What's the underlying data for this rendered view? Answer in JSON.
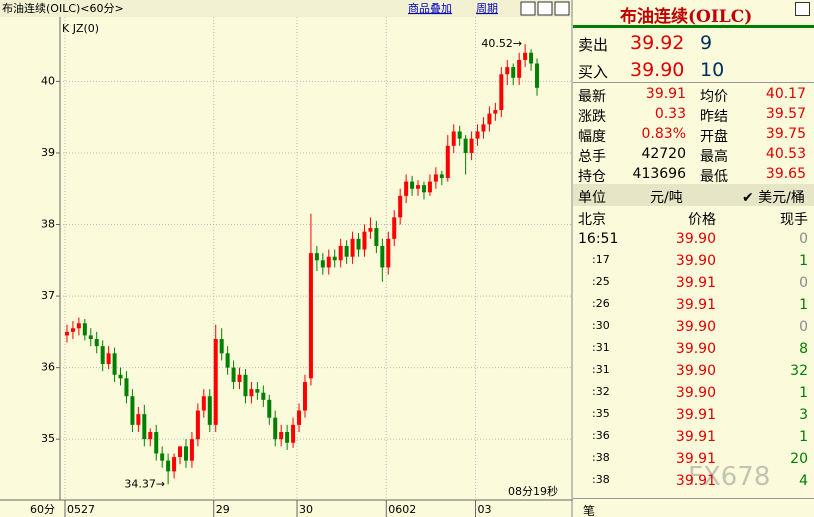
{
  "top_bar": {
    "title": "布油连续(OILC)<60分>",
    "overlay": "商品叠加",
    "period": "周期"
  },
  "chart_data": {
    "type": "candlestick",
    "indicator": "K JZ(0)",
    "interval": "60分",
    "countdown": "08分19秒",
    "categories": [
      "0527",
      null,
      null,
      null,
      null,
      null,
      null,
      null,
      null,
      null,
      null,
      null,
      null,
      null,
      null,
      null,
      null,
      null,
      null,
      null,
      null,
      null,
      null,
      null,
      null,
      "29",
      null,
      null,
      null,
      null,
      null,
      null,
      null,
      null,
      null,
      null,
      null,
      null,
      null,
      "30",
      null,
      null,
      null,
      null,
      null,
      null,
      null,
      null,
      null,
      null,
      null,
      null,
      null,
      null,
      "0602",
      null,
      null,
      null,
      null,
      null,
      null,
      null,
      null,
      null,
      null,
      null,
      null,
      null,
      null,
      "03",
      null,
      null,
      null,
      null,
      null,
      null,
      null,
      null,
      null,
      null
    ],
    "open": [
      36.45,
      36.5,
      36.55,
      36.62,
      36.45,
      36.4,
      36.3,
      36.05,
      36.2,
      35.9,
      35.85,
      35.6,
      35.2,
      35.35,
      35.0,
      35.1,
      34.8,
      34.7,
      34.55,
      34.75,
      34.9,
      34.7,
      35.0,
      35.4,
      35.6,
      35.2,
      36.4,
      36.2,
      36.0,
      35.8,
      35.9,
      35.6,
      35.7,
      35.65,
      35.55,
      35.3,
      35.0,
      35.1,
      34.95,
      35.2,
      35.4,
      35.85,
      37.6,
      37.5,
      37.4,
      37.55,
      37.5,
      37.7,
      37.55,
      37.8,
      37.65,
      37.9,
      37.95,
      37.7,
      37.4,
      37.8,
      38.1,
      38.4,
      38.6,
      38.5,
      38.55,
      38.45,
      38.6,
      38.7,
      38.65,
      39.1,
      39.3,
      39.2,
      39.0,
      39.2,
      39.3,
      39.4,
      39.55,
      39.6,
      40.1,
      40.2,
      40.05,
      40.3,
      40.4,
      40.25
    ],
    "high": [
      36.6,
      36.65,
      36.7,
      36.68,
      36.55,
      36.5,
      36.38,
      36.3,
      36.28,
      36.0,
      35.95,
      35.7,
      35.45,
      35.48,
      35.15,
      35.2,
      34.9,
      34.8,
      34.8,
      34.85,
      35.0,
      35.1,
      35.5,
      35.7,
      35.7,
      36.6,
      36.55,
      36.3,
      36.1,
      36.0,
      35.98,
      35.8,
      35.8,
      35.75,
      35.62,
      35.4,
      35.2,
      35.2,
      35.3,
      35.5,
      35.9,
      38.15,
      37.7,
      37.6,
      37.65,
      37.65,
      37.8,
      37.78,
      37.9,
      37.88,
      38.0,
      38.1,
      38.05,
      37.8,
      37.9,
      38.2,
      38.5,
      38.7,
      38.68,
      38.62,
      38.6,
      38.7,
      38.8,
      38.75,
      39.25,
      39.4,
      39.38,
      39.25,
      39.3,
      39.4,
      39.5,
      39.65,
      39.7,
      40.2,
      40.3,
      40.25,
      40.4,
      40.52,
      40.45,
      40.32
    ],
    "low": [
      36.35,
      36.4,
      36.45,
      36.38,
      36.3,
      36.2,
      35.95,
      35.98,
      35.8,
      35.75,
      35.5,
      35.1,
      35.1,
      34.9,
      34.9,
      34.7,
      34.6,
      34.37,
      34.45,
      34.65,
      34.6,
      34.6,
      34.9,
      35.3,
      35.1,
      35.1,
      36.1,
      35.9,
      35.7,
      35.7,
      35.5,
      35.5,
      35.55,
      35.45,
      35.2,
      34.9,
      34.9,
      34.85,
      34.88,
      35.1,
      35.3,
      35.75,
      37.35,
      37.3,
      37.3,
      37.4,
      37.4,
      37.45,
      37.45,
      37.55,
      37.55,
      37.8,
      37.6,
      37.2,
      37.3,
      37.7,
      38.0,
      38.3,
      38.4,
      38.4,
      38.35,
      38.4,
      38.5,
      38.55,
      38.6,
      39.0,
      39.1,
      38.7,
      38.9,
      39.1,
      39.2,
      39.3,
      39.45,
      39.5,
      39.95,
      39.95,
      39.95,
      40.2,
      40.15,
      39.8
    ],
    "close": [
      36.5,
      36.55,
      36.62,
      36.45,
      36.4,
      36.3,
      36.05,
      36.2,
      35.9,
      35.85,
      35.6,
      35.2,
      35.35,
      35.0,
      35.1,
      34.8,
      34.7,
      34.55,
      34.75,
      34.9,
      34.7,
      35.0,
      35.4,
      35.6,
      35.2,
      36.4,
      36.2,
      36.0,
      35.8,
      35.9,
      35.6,
      35.7,
      35.65,
      35.55,
      35.3,
      35.0,
      35.1,
      34.95,
      35.2,
      35.4,
      35.8,
      37.6,
      37.5,
      37.4,
      37.55,
      37.5,
      37.7,
      37.55,
      37.8,
      37.65,
      37.9,
      37.95,
      37.7,
      37.4,
      37.8,
      38.1,
      38.4,
      38.6,
      38.5,
      38.55,
      38.45,
      38.6,
      38.7,
      38.65,
      39.1,
      39.3,
      39.2,
      39.0,
      39.2,
      39.3,
      39.4,
      39.55,
      39.6,
      40.1,
      40.2,
      40.05,
      40.3,
      40.4,
      40.25,
      39.91
    ],
    "up_color": "#ff0000",
    "down_color": "#008000",
    "ylim": [
      34.15,
      40.9
    ],
    "yticks": [
      35,
      36,
      37,
      38,
      39,
      40
    ],
    "grid": true,
    "annotations": [
      {
        "text": "40.52→",
        "index": 77,
        "value": 40.52
      },
      {
        "text": "34.37→",
        "index": 17,
        "value": 34.37
      }
    ]
  },
  "panel": {
    "title": "布油连续(OILC)",
    "book": [
      {
        "label": "卖出",
        "price": "39.92",
        "qty": "9"
      },
      {
        "label": "买入",
        "price": "39.90",
        "qty": "10"
      }
    ],
    "stats": [
      [
        "最新",
        "39.91",
        "均价",
        "40.17"
      ],
      [
        "涨跌",
        "0.33",
        "昨结",
        "39.57"
      ],
      [
        "幅度",
        "0.83%",
        "开盘",
        "39.75"
      ],
      [
        "总手",
        "42720",
        "最高",
        "40.53"
      ],
      [
        "持仓",
        "413696",
        "最低",
        "39.65"
      ]
    ],
    "units": [
      "单位",
      "元/吨",
      "✔ 美元/桶"
    ],
    "ticks_header": [
      "北京",
      "价格",
      "现手"
    ],
    "ticks": [
      [
        "16:51",
        "39.90",
        "0"
      ],
      [
        ":17",
        "39.90",
        "1"
      ],
      [
        ":25",
        "39.91",
        "0"
      ],
      [
        ":26",
        "39.91",
        "1"
      ],
      [
        ":30",
        "39.90",
        "0"
      ],
      [
        ":31",
        "39.90",
        "8"
      ],
      [
        ":31",
        "39.90",
        "32"
      ],
      [
        ":32",
        "39.90",
        "1"
      ],
      [
        ":35",
        "39.91",
        "3"
      ],
      [
        ":36",
        "39.91",
        "1"
      ],
      [
        ":38",
        "39.91",
        "20"
      ],
      [
        ":38",
        "39.91",
        "4"
      ]
    ],
    "tab": "笔"
  },
  "watermark": "FX678"
}
